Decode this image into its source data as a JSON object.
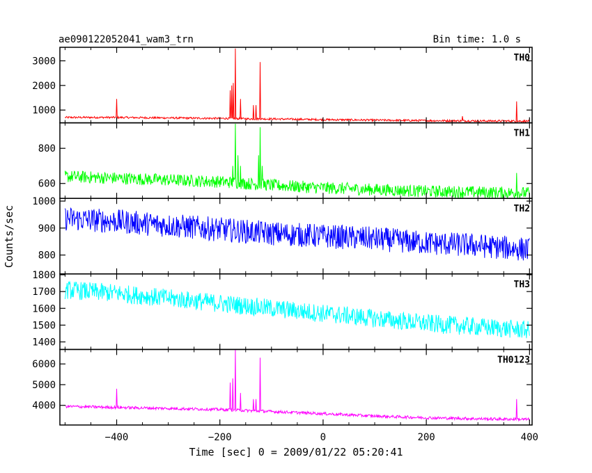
{
  "header": {
    "title": "ae090122052041_wam3_trn",
    "bin_time": "Bin time: 1.0 s"
  },
  "chart_data": {
    "type": "line",
    "xlabel": "Time [sec] 0 = 2009/01/22 05:20:41",
    "ylabel": "Counts/sec",
    "xlim": [
      -510,
      405
    ],
    "x_ticks": [
      -400,
      -200,
      0,
      200,
      400
    ],
    "x_tick_labels": [
      "−400",
      "−200",
      "0",
      "200",
      "400"
    ],
    "grid": false,
    "panels": [
      {
        "name": "TH0",
        "color": "#ff0000",
        "ylim": [
          480,
          3550
        ],
        "y_ticks": [
          1000,
          2000,
          3000
        ],
        "y_tick_labels": [
          "1000",
          "2000",
          "3000"
        ],
        "x": [
          -500,
          -400,
          -300,
          -200,
          -180,
          -170,
          -160,
          -140,
          -100,
          0,
          100,
          200,
          300,
          400
        ],
        "y": [
          700,
          700,
          680,
          660,
          660,
          650,
          650,
          640,
          640,
          610,
          590,
          570,
          560,
          550
        ],
        "noise": 40,
        "spikes": [
          {
            "x": -400,
            "y": 1450
          },
          {
            "x": -180,
            "y": 1800
          },
          {
            "x": -177,
            "y": 2000
          },
          {
            "x": -174,
            "y": 2100
          },
          {
            "x": -170,
            "y": 3500
          },
          {
            "x": -160,
            "y": 1450
          },
          {
            "x": -135,
            "y": 1200
          },
          {
            "x": -130,
            "y": 1200
          },
          {
            "x": -122,
            "y": 2950
          },
          {
            "x": 270,
            "y": 750
          },
          {
            "x": 375,
            "y": 1350
          }
        ]
      },
      {
        "name": "TH1",
        "color": "#00ff00",
        "ylim": [
          515,
          945
        ],
        "y_ticks": [
          600,
          800
        ],
        "y_tick_labels": [
          "600",
          "800"
        ],
        "x": [
          -500,
          -400,
          -300,
          -200,
          -100,
          0,
          100,
          200,
          300,
          400
        ],
        "y": [
          640,
          630,
          620,
          610,
          590,
          575,
          565,
          555,
          550,
          545
        ],
        "noise": 35,
        "spikes": [
          {
            "x": -175,
            "y": 700
          },
          {
            "x": -170,
            "y": 940
          },
          {
            "x": -165,
            "y": 760
          },
          {
            "x": -160,
            "y": 700
          },
          {
            "x": -125,
            "y": 760
          },
          {
            "x": -122,
            "y": 920
          },
          {
            "x": -118,
            "y": 700
          },
          {
            "x": 375,
            "y": 660
          }
        ]
      },
      {
        "name": "TH2",
        "color": "#0000ff",
        "ylim": [
          730,
          1010
        ],
        "y_ticks": [
          800,
          900,
          1000
        ],
        "y_tick_labels": [
          "800",
          "900",
          "1000"
        ],
        "x": [
          -500,
          -400,
          -300,
          -200,
          -100,
          0,
          100,
          200,
          300,
          400
        ],
        "y": [
          935,
          925,
          910,
          895,
          880,
          870,
          860,
          845,
          835,
          820
        ],
        "noise": 45,
        "spikes": []
      },
      {
        "name": "TH3",
        "color": "#00ffff",
        "ylim": [
          1355,
          1805
        ],
        "y_ticks": [
          1400,
          1500,
          1600,
          1700,
          1800
        ],
        "y_tick_labels": [
          "1400",
          "1500",
          "1600",
          "1700",
          "1800"
        ],
        "x": [
          -500,
          -400,
          -300,
          -200,
          -100,
          0,
          100,
          200,
          300,
          400
        ],
        "y": [
          1710,
          1690,
          1660,
          1630,
          1600,
          1570,
          1540,
          1510,
          1490,
          1470
        ],
        "noise": 55,
        "spikes": []
      },
      {
        "name": "TH0123",
        "color": "#ff00ff",
        "ylim": [
          3050,
          6700
        ],
        "y_ticks": [
          4000,
          5000,
          6000
        ],
        "y_tick_labels": [
          "4000",
          "5000",
          "6000"
        ],
        "x": [
          -500,
          -400,
          -300,
          -200,
          -100,
          0,
          100,
          200,
          300,
          400
        ],
        "y": [
          3950,
          3900,
          3850,
          3800,
          3700,
          3600,
          3480,
          3400,
          3350,
          3320
        ],
        "noise": 70,
        "spikes": [
          {
            "x": -400,
            "y": 4800
          },
          {
            "x": -180,
            "y": 5100
          },
          {
            "x": -175,
            "y": 5300
          },
          {
            "x": -170,
            "y": 6700
          },
          {
            "x": -160,
            "y": 4600
          },
          {
            "x": -135,
            "y": 4300
          },
          {
            "x": -130,
            "y": 4300
          },
          {
            "x": -122,
            "y": 6300
          },
          {
            "x": 375,
            "y": 4300
          }
        ]
      }
    ]
  }
}
